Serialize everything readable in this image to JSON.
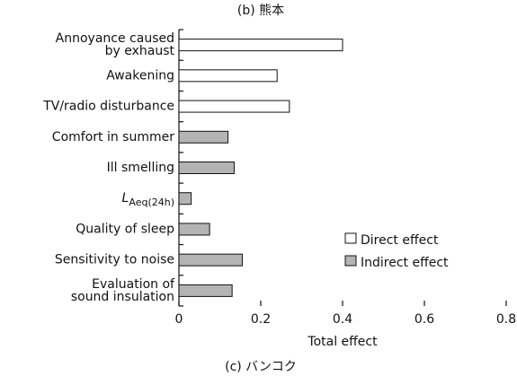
{
  "chart_data": {
    "type": "hbar",
    "title": "(b) 熊本",
    "caption": "(c) バンコク",
    "xlabel": "Total effect",
    "categories": [
      [
        "Annoyance caused",
        "by exhaust"
      ],
      "Awakening",
      "TV/radio disturbance",
      "Comfort in summer",
      "Ill smelling",
      {
        "text": "L",
        "subscript": "Aeq(24h)"
      },
      "Quality of sleep",
      "Sensitivity to noise",
      [
        "Evaluation of",
        "sound insulation"
      ]
    ],
    "series": [
      {
        "name": "Direct effect",
        "color": "#ffffff",
        "values": [
          0.4,
          0.24,
          0.27,
          null,
          null,
          null,
          null,
          null,
          null
        ]
      },
      {
        "name": "Indirect effect",
        "color": "#b4b4b4",
        "values": [
          null,
          null,
          null,
          0.12,
          0.135,
          0.03,
          0.075,
          0.155,
          0.13
        ]
      }
    ],
    "xlim": [
      0,
      0.8
    ],
    "xticks": [
      0,
      0.2,
      0.4,
      0.6,
      0.8
    ]
  }
}
